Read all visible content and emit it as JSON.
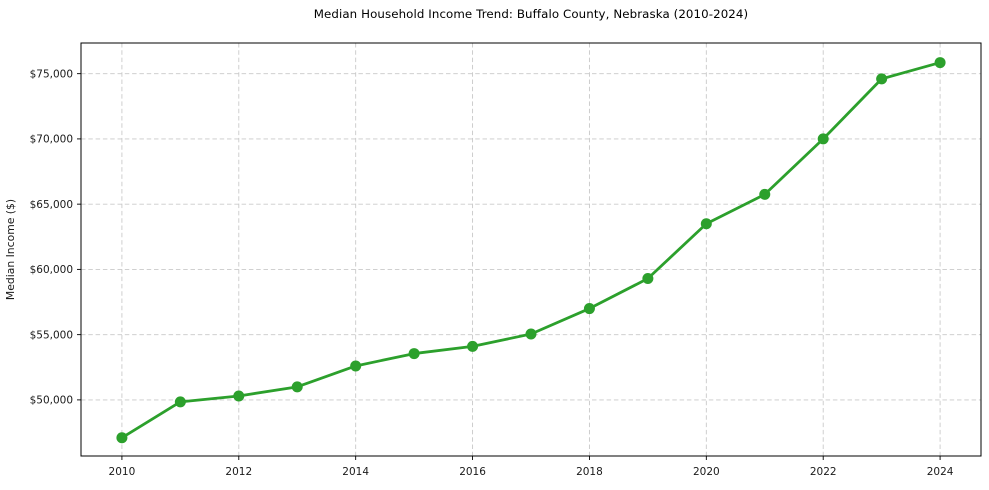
{
  "figure": {
    "background": "#ffffff"
  },
  "chart_data": {
    "type": "line",
    "title": "Median Household Income Trend: Buffalo County, Nebraska (2010-2024)",
    "xlabel": "",
    "ylabel": "Median Income ($)",
    "series": [
      {
        "name": "Median Household Income",
        "x": [
          2010,
          2011,
          2012,
          2013,
          2014,
          2015,
          2016,
          2017,
          2018,
          2019,
          2020,
          2021,
          2022,
          2023,
          2024
        ],
        "values": [
          47100,
          49850,
          50300,
          51000,
          52600,
          53550,
          54100,
          55050,
          57000,
          59300,
          63500,
          65750,
          70000,
          74600,
          75850
        ],
        "color": "#2ca02c",
        "marker": "circle",
        "line_width": 2.8,
        "marker_radius": 5.5
      }
    ],
    "xlim": [
      2009.3,
      2024.7
    ],
    "ylim": [
      45700,
      77350
    ],
    "xticks": {
      "values": [
        2010,
        2012,
        2014,
        2016,
        2018,
        2020,
        2022,
        2024
      ],
      "labels": [
        "2010",
        "2012",
        "2014",
        "2016",
        "2018",
        "2020",
        "2022",
        "2024"
      ]
    },
    "yticks": {
      "values": [
        50000,
        55000,
        60000,
        65000,
        70000,
        75000
      ],
      "labels": [
        "$50,000",
        "$55,000",
        "$60,000",
        "$65,000",
        "$70,000",
        "$75,000"
      ]
    },
    "grid": {
      "show": true,
      "style": "dashed",
      "color": "#c9c9c9"
    },
    "legend": {
      "show": false
    },
    "colors": {
      "line": "#2ca02c",
      "spine": "#000000",
      "tick_label": "#1a1a1a",
      "plot_background": "#ffffff"
    }
  }
}
